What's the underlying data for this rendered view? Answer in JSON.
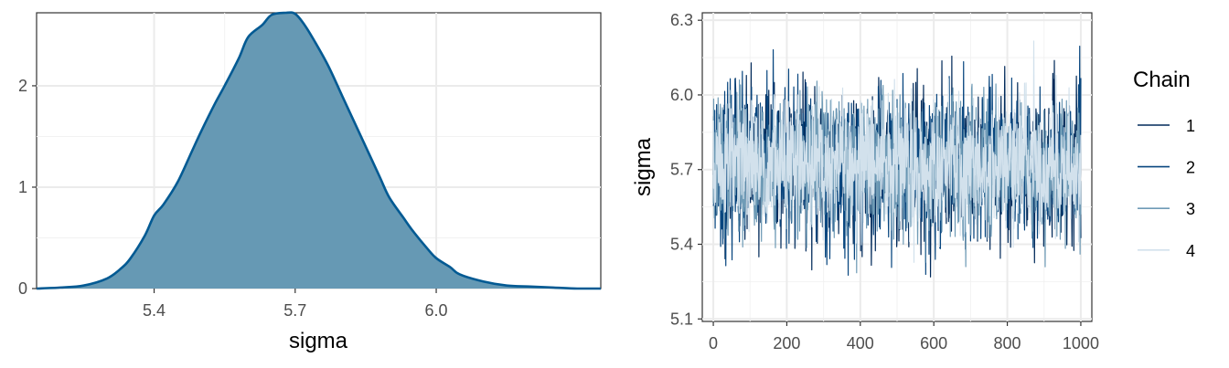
{
  "chart_data": [
    {
      "type": "area",
      "title": "",
      "xlabel": "sigma",
      "ylabel": "",
      "xlim": [
        5.15,
        6.35
      ],
      "ylim": [
        0,
        2.72
      ],
      "x_ticks": [
        5.4,
        5.7,
        6.0
      ],
      "x_tick_labels": [
        "5.4",
        "5.7",
        "6.0"
      ],
      "y_ticks": [
        0,
        1,
        2
      ],
      "y_tick_labels": [
        "0",
        "1",
        "2"
      ],
      "grid": true,
      "fill_color": "#6699b4",
      "line_color": "#035a93",
      "x": [
        5.15,
        5.2,
        5.25,
        5.3,
        5.33,
        5.35,
        5.38,
        5.4,
        5.42,
        5.45,
        5.48,
        5.5,
        5.53,
        5.55,
        5.58,
        5.6,
        5.63,
        5.65,
        5.68,
        5.7,
        5.72,
        5.74,
        5.77,
        5.8,
        5.83,
        5.85,
        5.88,
        5.9,
        5.93,
        5.95,
        5.98,
        6.0,
        6.03,
        6.05,
        6.1,
        6.15,
        6.2,
        6.25,
        6.3,
        6.35
      ],
      "y": [
        0.0,
        0.01,
        0.03,
        0.1,
        0.2,
        0.3,
        0.52,
        0.72,
        0.83,
        1.05,
        1.35,
        1.55,
        1.83,
        2.0,
        2.27,
        2.48,
        2.6,
        2.7,
        2.72,
        2.71,
        2.6,
        2.45,
        2.2,
        1.9,
        1.6,
        1.4,
        1.1,
        0.9,
        0.7,
        0.57,
        0.4,
        0.3,
        0.21,
        0.14,
        0.07,
        0.03,
        0.02,
        0.01,
        0.0,
        0.0
      ]
    },
    {
      "type": "line",
      "title": "",
      "xlabel": "",
      "ylabel": "sigma",
      "xlim": [
        -30,
        1030
      ],
      "ylim": [
        5.09,
        6.33
      ],
      "x_ticks": [
        0,
        200,
        400,
        600,
        800,
        1000
      ],
      "x_tick_labels": [
        "0",
        "200",
        "400",
        "600",
        "800",
        "1000"
      ],
      "y_ticks": [
        5.1,
        5.4,
        5.7,
        6.0,
        6.3
      ],
      "y_tick_labels": [
        "5.1",
        "5.4",
        "5.7",
        "6.0",
        "6.3"
      ],
      "grid": true,
      "legend": {
        "title": "Chain",
        "position": "right"
      },
      "series": [
        {
          "name": "1",
          "color": "#012a5a",
          "iterations": [
            0,
            1000
          ],
          "mean": 5.72,
          "sd": 0.15,
          "seed": 11
        },
        {
          "name": "2",
          "color": "#08467f",
          "iterations": [
            0,
            1000
          ],
          "mean": 5.72,
          "sd": 0.15,
          "seed": 23
        },
        {
          "name": "3",
          "color": "#6f9bb6",
          "iterations": [
            0,
            1000
          ],
          "mean": 5.72,
          "sd": 0.14,
          "seed": 37
        },
        {
          "name": "4",
          "color": "#d2e1ec",
          "iterations": [
            0,
            1000
          ],
          "mean": 5.72,
          "sd": 0.13,
          "seed": 51
        }
      ]
    }
  ]
}
